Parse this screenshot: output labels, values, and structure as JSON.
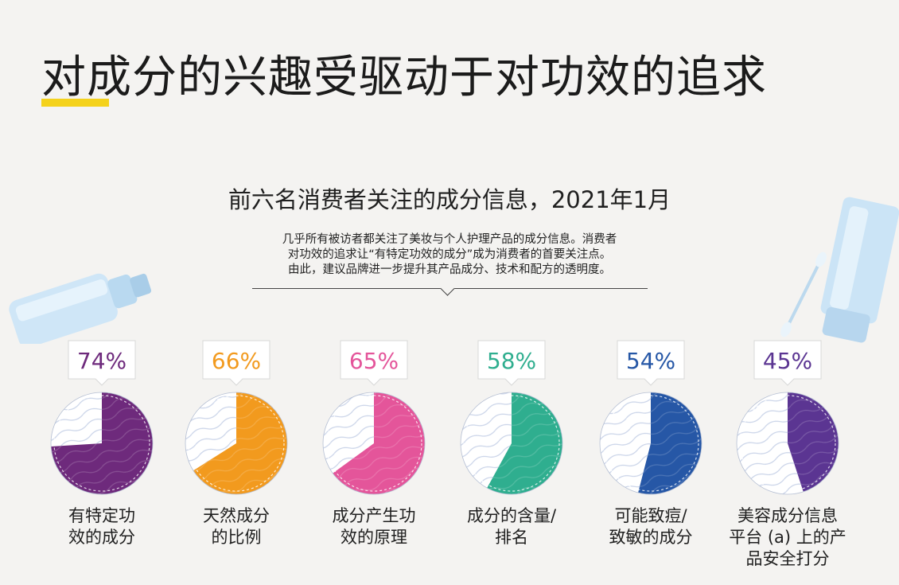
{
  "header": {
    "title": "对成分的兴趣受驱动于对功效的追求"
  },
  "chart_data": {
    "type": "pie",
    "title": "前六名消费者关注的成分信息，2021年1月",
    "description": [
      "几乎所有被访者都关注了美妆与个人护理产品的成分信息。消费者",
      "对功效的追求让“有特定功效的成分”成为消费者的首要关注点。",
      "由此，建议品牌进一步提升其产品成分、技术和配方的透明度。"
    ],
    "items": [
      {
        "label_lines": [
          "有特定功",
          "效的成分"
        ],
        "value": 74,
        "value_label": "74%",
        "color": "#6e2a7c"
      },
      {
        "label_lines": [
          "天然成分",
          "的比例"
        ],
        "value": 66,
        "value_label": "66%",
        "color": "#f29a1e"
      },
      {
        "label_lines": [
          "成分产生功",
          "效的原理"
        ],
        "value": 65,
        "value_label": "65%",
        "color": "#e4559a"
      },
      {
        "label_lines": [
          "成分的含量/",
          "排名"
        ],
        "value": 58,
        "value_label": "58%",
        "color": "#2fae8f"
      },
      {
        "label_lines": [
          "可能致痘/",
          "致敏的成分"
        ],
        "value": 54,
        "value_label": "54%",
        "color": "#2657a6"
      },
      {
        "label_lines": [
          "美容成分信息",
          "平台 (a) 上的产",
          "品安全打分"
        ],
        "value": 45,
        "value_label": "45%",
        "color": "#5b3592"
      }
    ]
  }
}
